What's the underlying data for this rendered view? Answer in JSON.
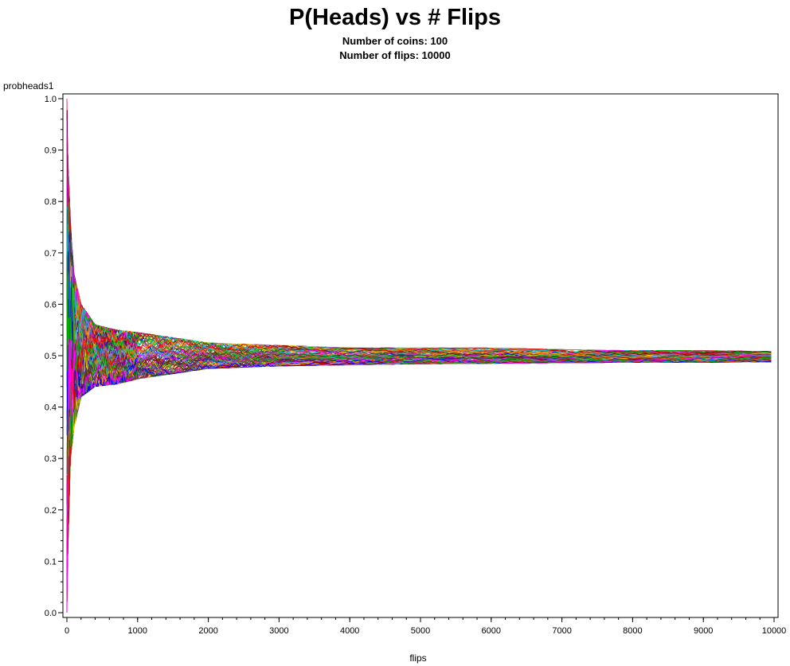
{
  "chart_data": {
    "type": "line",
    "title": "P(Heads) vs # Flips",
    "subtitles": [
      "Number of coins: 100",
      "Number of flips: 10000"
    ],
    "xlabel": "flips",
    "ylabel": "probheads1",
    "xlim": [
      0,
      10000
    ],
    "ylim": [
      0.0,
      1.0
    ],
    "x_ticks": [
      0,
      1000,
      2000,
      3000,
      4000,
      5000,
      6000,
      7000,
      8000,
      9000,
      10000
    ],
    "y_ticks": [
      0.0,
      0.1,
      0.2,
      0.3,
      0.4,
      0.5,
      0.6,
      0.7,
      0.8,
      0.9,
      1.0
    ],
    "y_tick_labels": [
      "0.0",
      "0.1",
      "0.2",
      "0.3",
      "0.4",
      "0.5",
      "0.6",
      "0.7",
      "0.8",
      "0.9",
      "1.0"
    ],
    "grid": false,
    "legend": "none",
    "num_series": 100,
    "series_x": [
      1,
      10,
      50,
      100,
      200,
      400,
      700,
      1000,
      1500,
      2000,
      3000,
      4000,
      5000,
      6000,
      7000,
      8000,
      9000,
      10000
    ],
    "envelope": {
      "upper": [
        1.0,
        0.9,
        0.76,
        0.66,
        0.6,
        0.56,
        0.55,
        0.545,
        0.535,
        0.525,
        0.52,
        0.515,
        0.515,
        0.515,
        0.512,
        0.51,
        0.51,
        0.508
      ],
      "lower": [
        0.0,
        0.1,
        0.3,
        0.36,
        0.42,
        0.44,
        0.445,
        0.455,
        0.465,
        0.475,
        0.48,
        0.482,
        0.484,
        0.485,
        0.486,
        0.487,
        0.487,
        0.488
      ]
    },
    "colors": [
      "#0000ff",
      "#ff0000",
      "#00aa00",
      "#ff00ff",
      "#ffcc00",
      "#00cccc",
      "#800000",
      "#008080",
      "#808000",
      "#800080",
      "#ff8000",
      "#8080ff",
      "#404040",
      "#33cc33",
      "#cc3366",
      "#663300"
    ]
  }
}
